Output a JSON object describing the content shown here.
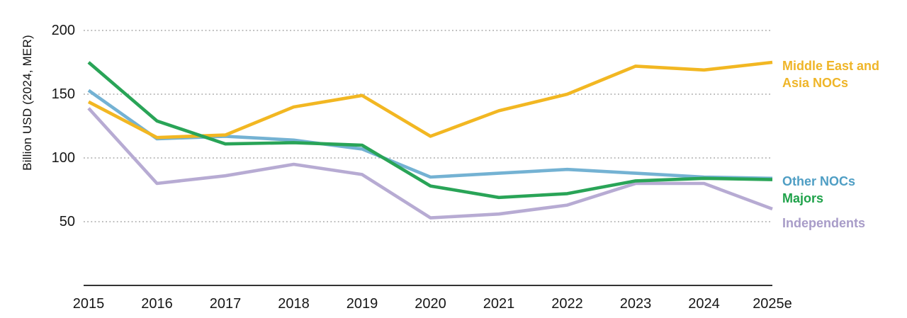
{
  "chart_data": {
    "type": "line",
    "ylabel": "Billion USD (2024, MER)",
    "categories": [
      "2015",
      "2016",
      "2017",
      "2018",
      "2019",
      "2020",
      "2021",
      "2022",
      "2023",
      "2024",
      "2025e"
    ],
    "y_ticks": [
      200,
      150,
      100,
      50
    ],
    "ylim": [
      0,
      210
    ],
    "grid": "horizontal-dotted",
    "legend_position": "right-end-of-lines",
    "axis_line_color": "#333333",
    "gridline_color": "#b3b3b3",
    "series": [
      {
        "name": "Middle East and Asia NOCs",
        "label_lines": "Middle East and\nAsia NOCs",
        "color": "#F2B722",
        "label_color": "#EFB528",
        "values": [
          144,
          116,
          118,
          140,
          149,
          117,
          137,
          150,
          172,
          169,
          175
        ]
      },
      {
        "name": "Other NOCs",
        "label_lines": "Other NOCs",
        "color": "#74B2D3",
        "label_color": "#4F9EC4",
        "values": [
          153,
          115,
          117,
          114,
          107,
          85,
          88,
          91,
          88,
          85,
          84
        ]
      },
      {
        "name": "Majors",
        "label_lines": "Majors",
        "color": "#29A457",
        "label_color": "#1FA24A",
        "values": [
          175,
          129,
          111,
          112,
          110,
          78,
          69,
          72,
          82,
          84,
          83
        ]
      },
      {
        "name": "Independents",
        "label_lines": "Independents",
        "color": "#B7ABD3",
        "label_color": "#A89CC8",
        "values": [
          139,
          80,
          86,
          95,
          87,
          53,
          56,
          63,
          80,
          80,
          60
        ]
      }
    ]
  }
}
